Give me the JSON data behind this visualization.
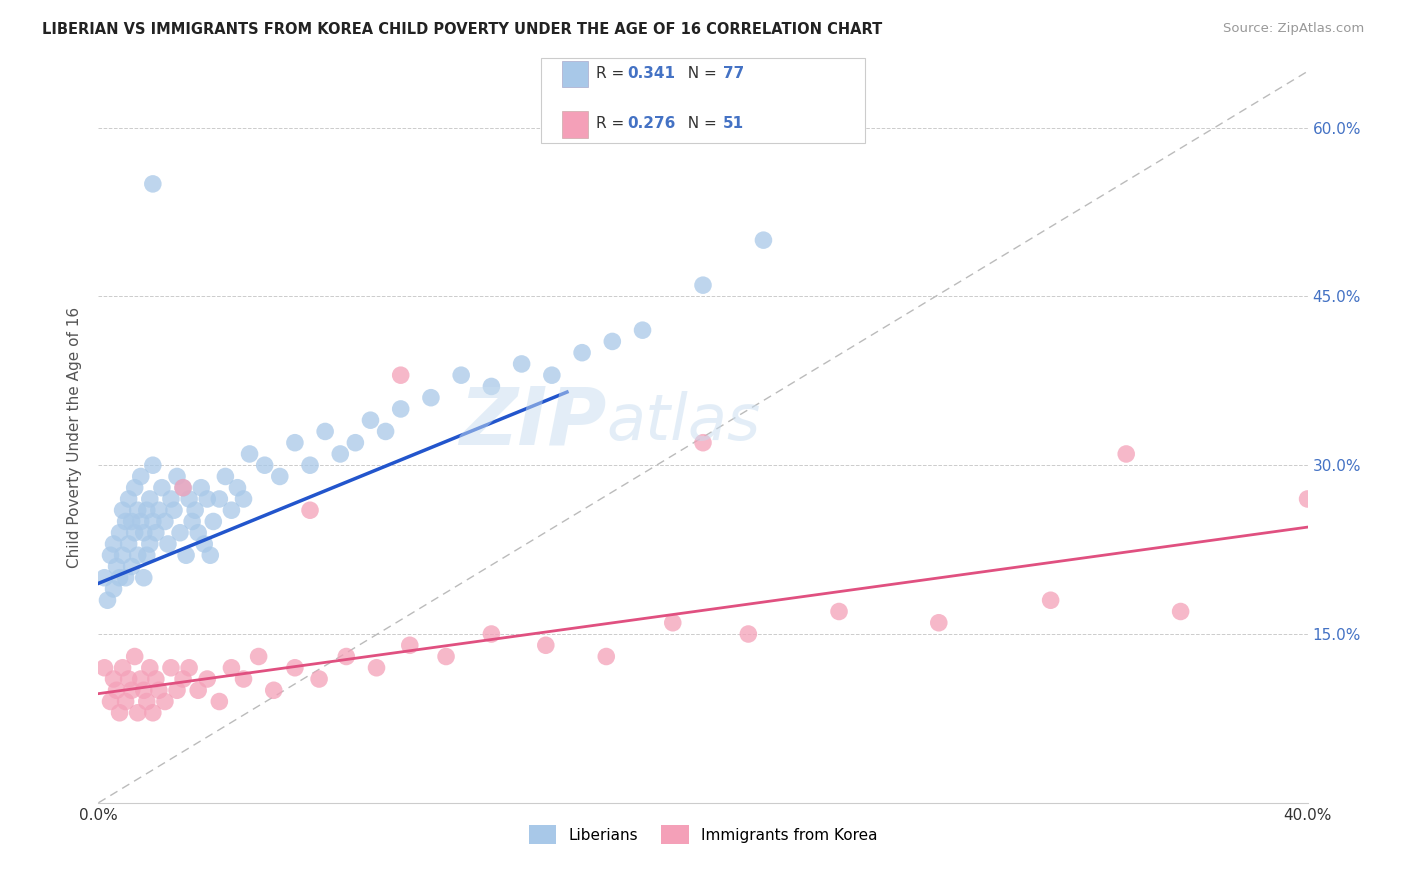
{
  "title": "LIBERIAN VS IMMIGRANTS FROM KOREA CHILD POVERTY UNDER THE AGE OF 16 CORRELATION CHART",
  "source": "Source: ZipAtlas.com",
  "ylabel": "Child Poverty Under the Age of 16",
  "xlim": [
    0.0,
    0.4
  ],
  "ylim": [
    0.0,
    0.65
  ],
  "ytick_positions": [
    0.0,
    0.15,
    0.3,
    0.45,
    0.6
  ],
  "ytick_labels": [
    "",
    "15.0%",
    "30.0%",
    "45.0%",
    "60.0%"
  ],
  "xtick_positions": [
    0.0,
    0.1,
    0.2,
    0.3,
    0.4
  ],
  "xtick_labels": [
    "0.0%",
    "",
    "",
    "",
    "40.0%"
  ],
  "legend_sublabel1": "Liberians",
  "legend_sublabel2": "Immigrants from Korea",
  "color_blue": "#a8c8e8",
  "color_pink": "#f4a0b8",
  "color_blue_line": "#2255cc",
  "color_pink_line": "#e05080",
  "color_blue_text": "#4472c4",
  "watermark": "ZIPatlas",
  "blue_trend_x0": 0.0,
  "blue_trend_y0": 0.195,
  "blue_trend_x1": 0.155,
  "blue_trend_y1": 0.365,
  "pink_trend_x0": 0.0,
  "pink_trend_y0": 0.097,
  "pink_trend_x1": 0.4,
  "pink_trend_y1": 0.245,
  "blue_scatter_x": [
    0.002,
    0.003,
    0.004,
    0.005,
    0.005,
    0.006,
    0.007,
    0.007,
    0.008,
    0.008,
    0.009,
    0.009,
    0.01,
    0.01,
    0.011,
    0.011,
    0.012,
    0.012,
    0.013,
    0.013,
    0.014,
    0.014,
    0.015,
    0.015,
    0.016,
    0.016,
    0.017,
    0.017,
    0.018,
    0.018,
    0.019,
    0.02,
    0.021,
    0.022,
    0.023,
    0.024,
    0.025,
    0.026,
    0.027,
    0.028,
    0.029,
    0.03,
    0.031,
    0.032,
    0.033,
    0.034,
    0.035,
    0.036,
    0.037,
    0.038,
    0.04,
    0.042,
    0.044,
    0.046,
    0.048,
    0.05,
    0.055,
    0.06,
    0.065,
    0.07,
    0.075,
    0.08,
    0.085,
    0.09,
    0.095,
    0.1,
    0.11,
    0.12,
    0.13,
    0.14,
    0.15,
    0.16,
    0.17,
    0.18,
    0.2,
    0.22,
    0.018
  ],
  "blue_scatter_y": [
    0.2,
    0.18,
    0.22,
    0.19,
    0.23,
    0.21,
    0.2,
    0.24,
    0.22,
    0.26,
    0.25,
    0.2,
    0.23,
    0.27,
    0.21,
    0.25,
    0.24,
    0.28,
    0.22,
    0.26,
    0.25,
    0.29,
    0.24,
    0.2,
    0.26,
    0.22,
    0.27,
    0.23,
    0.25,
    0.3,
    0.24,
    0.26,
    0.28,
    0.25,
    0.23,
    0.27,
    0.26,
    0.29,
    0.24,
    0.28,
    0.22,
    0.27,
    0.25,
    0.26,
    0.24,
    0.28,
    0.23,
    0.27,
    0.22,
    0.25,
    0.27,
    0.29,
    0.26,
    0.28,
    0.27,
    0.31,
    0.3,
    0.29,
    0.32,
    0.3,
    0.33,
    0.31,
    0.32,
    0.34,
    0.33,
    0.35,
    0.36,
    0.38,
    0.37,
    0.39,
    0.38,
    0.4,
    0.41,
    0.42,
    0.46,
    0.5,
    0.55
  ],
  "pink_scatter_x": [
    0.002,
    0.004,
    0.005,
    0.006,
    0.007,
    0.008,
    0.009,
    0.01,
    0.011,
    0.012,
    0.013,
    0.014,
    0.015,
    0.016,
    0.017,
    0.018,
    0.019,
    0.02,
    0.022,
    0.024,
    0.026,
    0.028,
    0.03,
    0.033,
    0.036,
    0.04,
    0.044,
    0.048,
    0.053,
    0.058,
    0.065,
    0.073,
    0.082,
    0.092,
    0.103,
    0.115,
    0.13,
    0.148,
    0.168,
    0.19,
    0.215,
    0.245,
    0.278,
    0.315,
    0.358,
    0.4,
    0.028,
    0.07,
    0.1,
    0.2,
    0.34
  ],
  "pink_scatter_y": [
    0.12,
    0.09,
    0.11,
    0.1,
    0.08,
    0.12,
    0.09,
    0.11,
    0.1,
    0.13,
    0.08,
    0.11,
    0.1,
    0.09,
    0.12,
    0.08,
    0.11,
    0.1,
    0.09,
    0.12,
    0.1,
    0.11,
    0.12,
    0.1,
    0.11,
    0.09,
    0.12,
    0.11,
    0.13,
    0.1,
    0.12,
    0.11,
    0.13,
    0.12,
    0.14,
    0.13,
    0.15,
    0.14,
    0.13,
    0.16,
    0.15,
    0.17,
    0.16,
    0.18,
    0.17,
    0.27,
    0.28,
    0.26,
    0.38,
    0.32,
    0.31
  ]
}
